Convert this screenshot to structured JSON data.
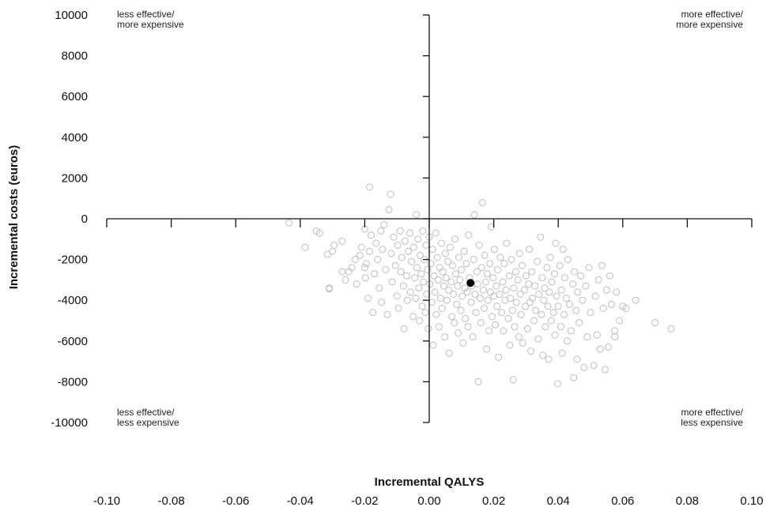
{
  "chart_data": {
    "type": "scatter",
    "xlabel": "Incremental QALYS",
    "ylabel": "Incremental costs (euros)",
    "xlim": [
      -0.1,
      0.1
    ],
    "ylim": [
      -10000,
      10000
    ],
    "x_ticks": [
      -0.1,
      -0.08,
      -0.06,
      -0.04,
      -0.02,
      0.0,
      0.02,
      0.04,
      0.06,
      0.08,
      0.1
    ],
    "x_tick_labels": [
      "-0.10",
      "-0.08",
      "-0.06",
      "-0.04",
      "-0.02",
      "0.00",
      "0.02",
      "0.04",
      "0.06",
      "0.08",
      "0.10"
    ],
    "y_ticks": [
      10000,
      8000,
      6000,
      4000,
      2000,
      0,
      -2000,
      -4000,
      -6000,
      -8000,
      -10000
    ],
    "y_tick_labels": [
      "10000",
      "8000",
      "6000",
      "4000",
      "2000",
      "0",
      "-2000",
      "-4000",
      "-6000",
      "-8000",
      "-10000"
    ],
    "grid": false,
    "point_estimate": {
      "x": 0.0128,
      "y": -3150
    },
    "quadrant_labels": {
      "top_left": [
        "less effective/",
        "more expensive"
      ],
      "top_right": [
        "more effective/",
        "more expensive"
      ],
      "bottom_left": [
        "less effective/",
        "less expensive"
      ],
      "bottom_right": [
        "more effective/",
        "less expensive"
      ]
    },
    "colors": {
      "replicates": "#bdbdbd",
      "point_estimate": "#000000",
      "axis": "#111111"
    },
    "series": [
      {
        "values": [
          [
            -0.0435,
            -200
          ],
          [
            -0.0385,
            -1400
          ],
          [
            -0.035,
            -600
          ],
          [
            -0.034,
            -700
          ],
          [
            -0.0315,
            -1750
          ],
          [
            -0.031,
            -3450
          ],
          [
            -0.03,
            -1600
          ],
          [
            -0.0295,
            -1300
          ],
          [
            -0.027,
            -1100
          ],
          [
            -0.026,
            -3000
          ],
          [
            -0.025,
            -2600
          ],
          [
            -0.024,
            -2400
          ],
          [
            -0.023,
            -2000
          ],
          [
            -0.0225,
            -3200
          ],
          [
            -0.0215,
            -1800
          ],
          [
            -0.021,
            -1400
          ],
          [
            -0.02,
            -500
          ],
          [
            -0.0198,
            -2900
          ],
          [
            -0.0195,
            -2200
          ],
          [
            -0.019,
            -3900
          ],
          [
            -0.0185,
            -1600
          ],
          [
            -0.018,
            -800
          ],
          [
            -0.0175,
            -4600
          ],
          [
            -0.017,
            -2700
          ],
          [
            -0.0165,
            -1200
          ],
          [
            -0.016,
            -2000
          ],
          [
            -0.0155,
            -3400
          ],
          [
            -0.015,
            -600
          ],
          [
            -0.0148,
            -4100
          ],
          [
            -0.0145,
            -1500
          ],
          [
            -0.014,
            -300
          ],
          [
            -0.0135,
            -2500
          ],
          [
            -0.013,
            -4700
          ],
          [
            -0.0125,
            450
          ],
          [
            -0.012,
            1200
          ],
          [
            -0.0118,
            -1700
          ],
          [
            -0.0115,
            -3100
          ],
          [
            -0.011,
            -900
          ],
          [
            -0.0105,
            -2300
          ],
          [
            -0.01,
            -3800
          ],
          [
            -0.0098,
            -1300
          ],
          [
            -0.0095,
            -4400
          ],
          [
            -0.009,
            -600
          ],
          [
            -0.0088,
            -2600
          ],
          [
            -0.0085,
            -1900
          ],
          [
            -0.008,
            -3300
          ],
          [
            -0.0078,
            -5400
          ],
          [
            -0.0075,
            -1100
          ],
          [
            -0.007,
            -2800
          ],
          [
            -0.0068,
            -4000
          ],
          [
            -0.0065,
            -1600
          ],
          [
            -0.006,
            -700
          ],
          [
            -0.0058,
            -3600
          ],
          [
            -0.0055,
            -2100
          ],
          [
            -0.005,
            -4800
          ],
          [
            -0.0048,
            -1400
          ],
          [
            -0.0045,
            -2900
          ],
          [
            -0.0042,
            -3900
          ],
          [
            -0.004,
            200
          ],
          [
            -0.0038,
            -2400
          ],
          [
            -0.0035,
            -1000
          ],
          [
            -0.0032,
            -3400
          ],
          [
            -0.003,
            -5000
          ],
          [
            -0.0028,
            -1800
          ],
          [
            -0.0025,
            -2700
          ],
          [
            -0.0022,
            -4300
          ],
          [
            -0.002,
            -600
          ],
          [
            -0.0018,
            -3100
          ],
          [
            -0.0015,
            -2000
          ],
          [
            -0.0012,
            -4600
          ],
          [
            -0.001,
            -1300
          ],
          [
            -0.0008,
            -3700
          ],
          [
            -0.0005,
            -2500
          ],
          [
            -0.0003,
            -5400
          ],
          [
            0.0,
            -900
          ],
          [
            0.0002,
            -3200
          ],
          [
            0.0005,
            -2200
          ],
          [
            0.0008,
            -4100
          ],
          [
            0.001,
            -1500
          ],
          [
            0.0012,
            -6200
          ],
          [
            0.0015,
            -2800
          ],
          [
            0.0018,
            -3600
          ],
          [
            0.002,
            -700
          ],
          [
            0.0022,
            -4700
          ],
          [
            0.0025,
            -1900
          ],
          [
            0.0028,
            -3000
          ],
          [
            0.003,
            -5300
          ],
          [
            0.0032,
            -2400
          ],
          [
            0.0035,
            -3900
          ],
          [
            0.0038,
            -1200
          ],
          [
            0.004,
            -4400
          ],
          [
            0.0042,
            -2600
          ],
          [
            0.0045,
            -3300
          ],
          [
            0.0048,
            -5800
          ],
          [
            0.005,
            -1700
          ],
          [
            0.0052,
            -2900
          ],
          [
            0.0055,
            -4000
          ],
          [
            0.0058,
            -2100
          ],
          [
            0.006,
            -3500
          ],
          [
            0.0062,
            -6600
          ],
          [
            0.0065,
            -1400
          ],
          [
            0.0068,
            -3100
          ],
          [
            0.007,
            -4800
          ],
          [
            0.0072,
            -2300
          ],
          [
            0.0075,
            -3700
          ],
          [
            0.0078,
            -5100
          ],
          [
            0.008,
            -1000
          ],
          [
            0.0082,
            -2700
          ],
          [
            0.0085,
            -4200
          ],
          [
            0.0088,
            -3300
          ],
          [
            0.009,
            -5600
          ],
          [
            0.0092,
            -1900
          ],
          [
            0.0095,
            -3000
          ],
          [
            0.0098,
            -4500
          ],
          [
            0.01,
            -2500
          ],
          [
            0.0102,
            -3800
          ],
          [
            0.0105,
            -6100
          ],
          [
            0.0108,
            -1600
          ],
          [
            0.011,
            -3400
          ],
          [
            0.0112,
            -4900
          ],
          [
            0.0115,
            -2200
          ],
          [
            0.0118,
            -3600
          ],
          [
            0.012,
            -5300
          ],
          [
            0.0122,
            -800
          ],
          [
            0.0125,
            -2900
          ],
          [
            0.013,
            -4100
          ],
          [
            0.0132,
            -3300
          ],
          [
            0.0135,
            -5800
          ],
          [
            0.0138,
            -2000
          ],
          [
            0.014,
            200
          ],
          [
            0.0142,
            -3700
          ],
          [
            0.0145,
            -4600
          ],
          [
            0.0148,
            -2600
          ],
          [
            0.015,
            -3200
          ],
          [
            0.0152,
            -8000
          ],
          [
            0.0155,
            -1300
          ],
          [
            0.0158,
            -3900
          ],
          [
            0.016,
            -5100
          ],
          [
            0.0162,
            -2400
          ],
          [
            0.0165,
            800
          ],
          [
            0.0168,
            -3500
          ],
          [
            0.017,
            -4400
          ],
          [
            0.0172,
            -1800
          ],
          [
            0.0175,
            -3100
          ],
          [
            0.0178,
            -6400
          ],
          [
            0.018,
            -2700
          ],
          [
            0.0182,
            -4000
          ],
          [
            0.0185,
            -5500
          ],
          [
            0.0188,
            -2200
          ],
          [
            0.019,
            -3600
          ],
          [
            0.0192,
            -400
          ],
          [
            0.0195,
            -4800
          ],
          [
            0.0198,
            -2900
          ],
          [
            0.02,
            -3800
          ],
          [
            0.0202,
            -1500
          ],
          [
            0.0205,
            -5200
          ],
          [
            0.0208,
            -3300
          ],
          [
            0.021,
            -4300
          ],
          [
            0.0212,
            -2500
          ],
          [
            0.0215,
            -6800
          ],
          [
            0.0218,
            -3700
          ],
          [
            0.022,
            -1900
          ],
          [
            0.0225,
            -4600
          ],
          [
            0.0228,
            -3100
          ],
          [
            0.023,
            -5500
          ],
          [
            0.0232,
            -2200
          ],
          [
            0.0235,
            -4000
          ],
          [
            0.0238,
            -3500
          ],
          [
            0.024,
            -1200
          ],
          [
            0.0245,
            -4900
          ],
          [
            0.0248,
            -2800
          ],
          [
            0.025,
            -6200
          ],
          [
            0.0252,
            -3900
          ],
          [
            0.0255,
            -2000
          ],
          [
            0.0258,
            -4500
          ],
          [
            0.026,
            -7900
          ],
          [
            0.0262,
            -3400
          ],
          [
            0.0265,
            -5300
          ],
          [
            0.0268,
            -2600
          ],
          [
            0.027,
            -4100
          ],
          [
            0.0275,
            -3000
          ],
          [
            0.0278,
            -5800
          ],
          [
            0.028,
            -1700
          ],
          [
            0.0282,
            -3700
          ],
          [
            0.0285,
            -4700
          ],
          [
            0.0288,
            -2300
          ],
          [
            0.029,
            -6100
          ],
          [
            0.0295,
            -3500
          ],
          [
            0.0298,
            -4300
          ],
          [
            0.03,
            -2800
          ],
          [
            0.0305,
            -5400
          ],
          [
            0.0308,
            -3200
          ],
          [
            0.031,
            -1500
          ],
          [
            0.0312,
            -4100
          ],
          [
            0.0315,
            -6500
          ],
          [
            0.0318,
            -2600
          ],
          [
            0.032,
            -3900
          ],
          [
            0.0325,
            -5000
          ],
          [
            0.0328,
            -3300
          ],
          [
            0.033,
            -4500
          ],
          [
            0.0335,
            -2100
          ],
          [
            0.0338,
            -5900
          ],
          [
            0.034,
            -3700
          ],
          [
            0.0345,
            -900
          ],
          [
            0.0348,
            -4700
          ],
          [
            0.035,
            -2900
          ],
          [
            0.0352,
            -6700
          ],
          [
            0.0355,
            -4000
          ],
          [
            0.0358,
            -3400
          ],
          [
            0.036,
            -5300
          ],
          [
            0.0365,
            -2400
          ],
          [
            0.0368,
            -4300
          ],
          [
            0.037,
            -6900
          ],
          [
            0.0372,
            -3600
          ],
          [
            0.0375,
            -1900
          ],
          [
            0.0378,
            -5000
          ],
          [
            0.038,
            -3100
          ],
          [
            0.0385,
            -4600
          ],
          [
            0.0388,
            -2700
          ],
          [
            0.039,
            -5700
          ],
          [
            0.0392,
            -1200
          ],
          [
            0.0395,
            -3800
          ],
          [
            0.0398,
            -8100
          ],
          [
            0.04,
            -4300
          ],
          [
            0.0405,
            -2300
          ],
          [
            0.0408,
            -5300
          ],
          [
            0.041,
            -3500
          ],
          [
            0.0412,
            -6600
          ],
          [
            0.0415,
            -1500
          ],
          [
            0.0418,
            -4700
          ],
          [
            0.042,
            -2900
          ],
          [
            0.0425,
            -3900
          ],
          [
            0.0428,
            -6000
          ],
          [
            0.043,
            -2000
          ],
          [
            0.0435,
            -4200
          ],
          [
            0.044,
            -5500
          ],
          [
            0.0445,
            -3200
          ],
          [
            0.0448,
            -7800
          ],
          [
            0.045,
            -2600
          ],
          [
            0.0455,
            -4500
          ],
          [
            0.0458,
            -6900
          ],
          [
            0.046,
            -3600
          ],
          [
            0.0465,
            -5100
          ],
          [
            0.047,
            -2800
          ],
          [
            0.0475,
            -4000
          ],
          [
            0.048,
            -7300
          ],
          [
            0.0485,
            -3300
          ],
          [
            0.049,
            -5800
          ],
          [
            0.0495,
            -2400
          ],
          [
            0.05,
            -4600
          ],
          [
            0.051,
            -7200
          ],
          [
            0.0515,
            -3800
          ],
          [
            0.052,
            -5700
          ],
          [
            0.0525,
            -3000
          ],
          [
            0.053,
            -6400
          ],
          [
            0.0535,
            -2300
          ],
          [
            0.054,
            -4400
          ],
          [
            0.0545,
            -7400
          ],
          [
            0.055,
            -3500
          ],
          [
            0.0555,
            -6300
          ],
          [
            0.056,
            -2800
          ],
          [
            0.0565,
            -4200
          ],
          [
            0.0575,
            -5500
          ],
          [
            0.058,
            -3600
          ],
          [
            0.059,
            -5000
          ],
          [
            0.06,
            -4300
          ],
          [
            0.061,
            -4400
          ],
          [
            0.064,
            -4000
          ],
          [
            0.07,
            -5100
          ],
          [
            0.075,
            -5400
          ],
          [
            -0.0185,
            1550
          ],
          [
            -0.031,
            -3400
          ],
          [
            -0.02,
            -2400
          ],
          [
            -0.027,
            -2600
          ],
          [
            0.0575,
            -5800
          ]
        ]
      }
    ]
  }
}
